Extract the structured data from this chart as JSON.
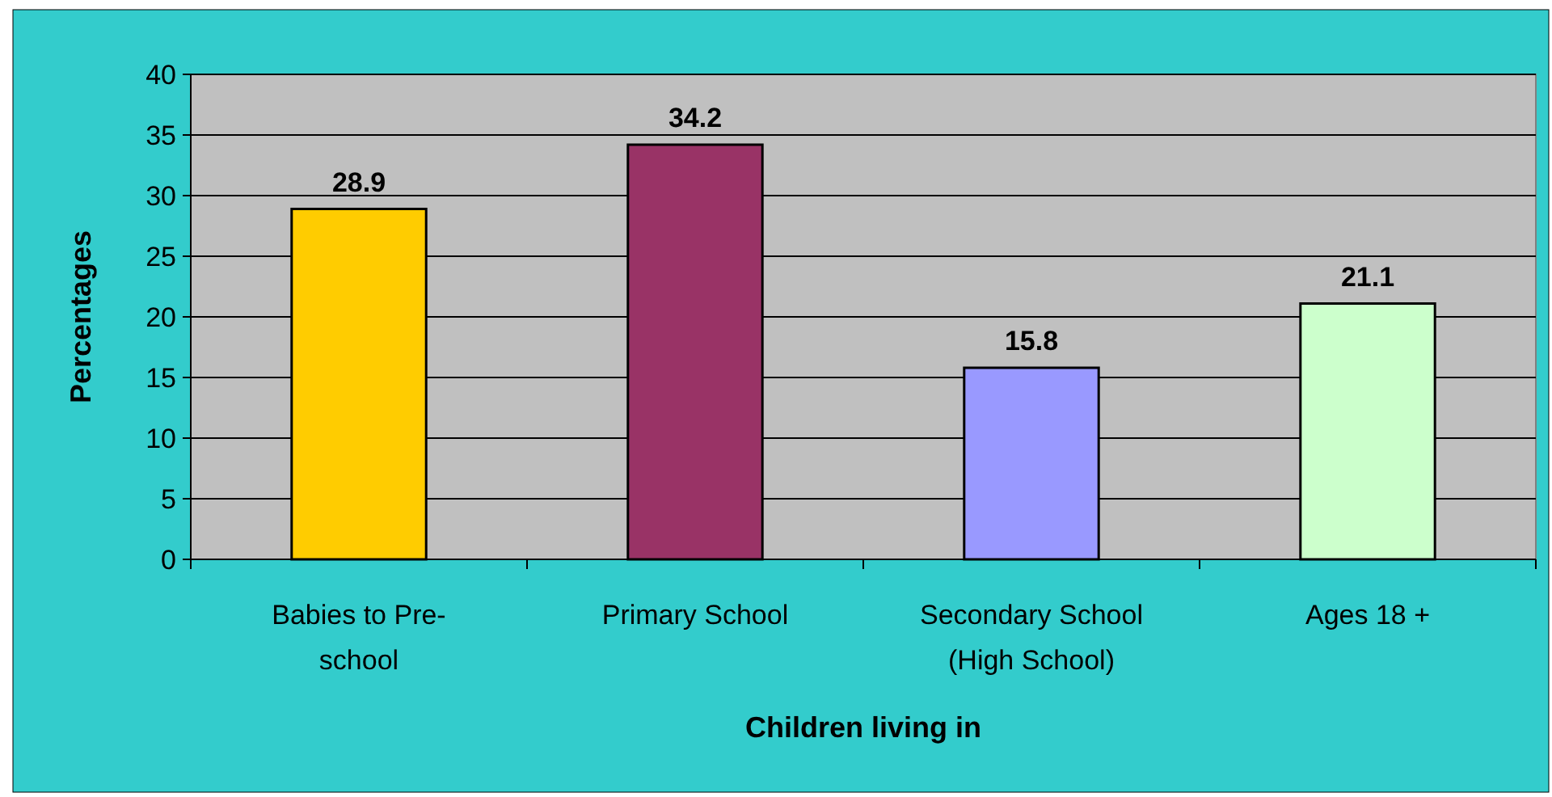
{
  "chart_data": {
    "type": "bar",
    "xlabel": "Children living in",
    "ylabel": "Percentages",
    "categories": [
      "Babies to Pre-school",
      "Primary School",
      "Secondary School (High School)",
      "Ages 18 +"
    ],
    "values": [
      28.9,
      34.2,
      15.8,
      21.1
    ],
    "colors": [
      "#ffcc00",
      "#993366",
      "#9999ff",
      "#ccffcc"
    ],
    "ylim": [
      0,
      40
    ],
    "yticks": [
      0,
      5,
      10,
      15,
      20,
      25,
      30,
      35,
      40
    ],
    "grid": "y",
    "data_labels": true
  }
}
